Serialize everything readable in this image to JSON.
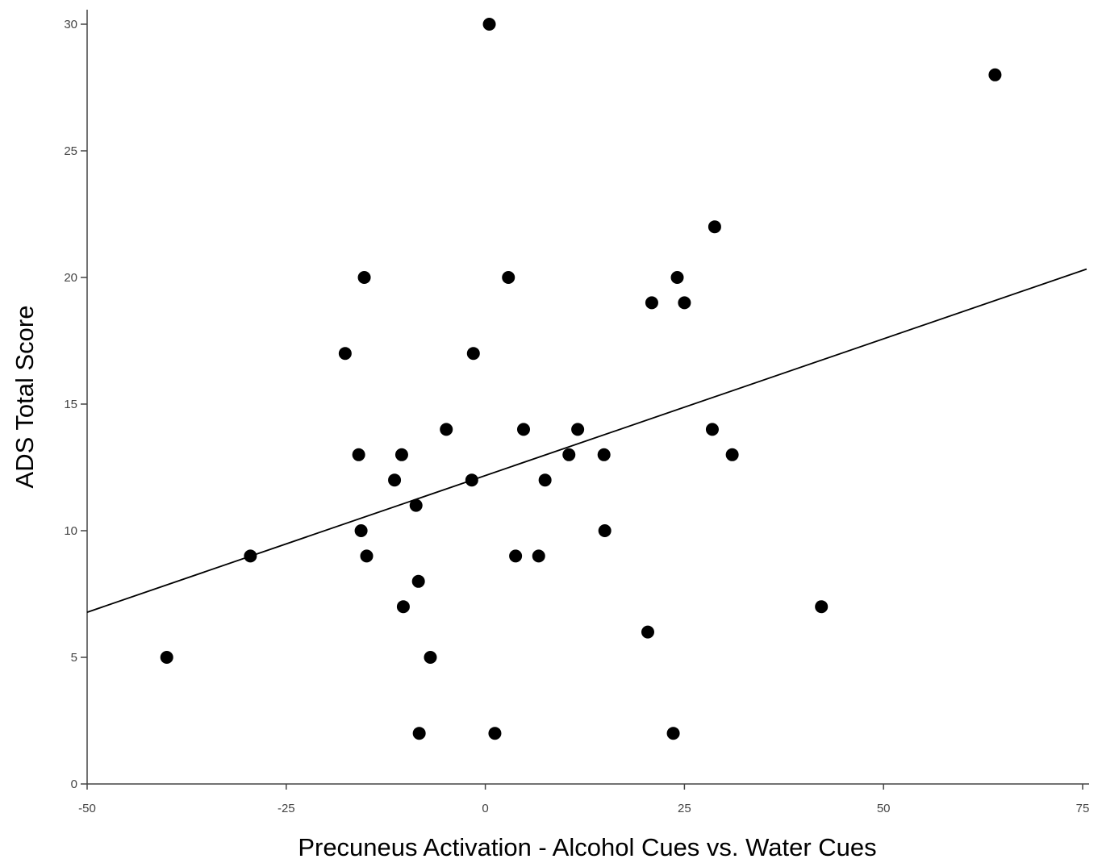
{
  "chart_data": {
    "type": "scatter",
    "xlabel": "Precuneus Activation - Alcohol Cues vs. Water Cues",
    "ylabel": "ADS Total Score",
    "xlim": [
      -50,
      75
    ],
    "ylim": [
      0,
      30
    ],
    "x_ticks": [
      -50,
      -25,
      0,
      25,
      50,
      75
    ],
    "y_ticks": [
      0,
      5,
      10,
      15,
      20,
      25,
      30
    ],
    "x_tick_labels": [
      "-50",
      "-25",
      "0",
      "25",
      "50",
      "75"
    ],
    "y_tick_labels": [
      "0",
      "5",
      "10",
      "15",
      "20",
      "25",
      "30"
    ],
    "grid": false,
    "points": [
      {
        "x": -40.0,
        "y": 5
      },
      {
        "x": -29.5,
        "y": 9
      },
      {
        "x": -17.6,
        "y": 17
      },
      {
        "x": -15.9,
        "y": 13
      },
      {
        "x": -15.6,
        "y": 10
      },
      {
        "x": -15.2,
        "y": 20
      },
      {
        "x": -14.9,
        "y": 9
      },
      {
        "x": -11.4,
        "y": 12
      },
      {
        "x": -10.5,
        "y": 13
      },
      {
        "x": -10.3,
        "y": 7
      },
      {
        "x": -8.7,
        "y": 11
      },
      {
        "x": -8.4,
        "y": 8
      },
      {
        "x": -8.3,
        "y": 2
      },
      {
        "x": -6.9,
        "y": 5
      },
      {
        "x": -4.9,
        "y": 14
      },
      {
        "x": -1.7,
        "y": 12
      },
      {
        "x": -1.5,
        "y": 17
      },
      {
        "x": 0.5,
        "y": 30
      },
      {
        "x": 1.2,
        "y": 2
      },
      {
        "x": 2.9,
        "y": 20
      },
      {
        "x": 3.8,
        "y": 9
      },
      {
        "x": 4.8,
        "y": 14
      },
      {
        "x": 6.7,
        "y": 9
      },
      {
        "x": 7.5,
        "y": 12
      },
      {
        "x": 10.5,
        "y": 13
      },
      {
        "x": 11.6,
        "y": 14
      },
      {
        "x": 14.9,
        "y": 13
      },
      {
        "x": 15.0,
        "y": 10
      },
      {
        "x": 20.4,
        "y": 6
      },
      {
        "x": 20.9,
        "y": 19
      },
      {
        "x": 23.6,
        "y": 2
      },
      {
        "x": 24.1,
        "y": 20
      },
      {
        "x": 25.0,
        "y": 19
      },
      {
        "x": 28.5,
        "y": 14
      },
      {
        "x": 28.8,
        "y": 22
      },
      {
        "x": 31.0,
        "y": 13
      },
      {
        "x": 42.2,
        "y": 7
      },
      {
        "x": 64.0,
        "y": 28
      }
    ],
    "fit_line": {
      "x": [
        -50,
        75.5
      ],
      "y": [
        6.78,
        20.33
      ]
    }
  }
}
